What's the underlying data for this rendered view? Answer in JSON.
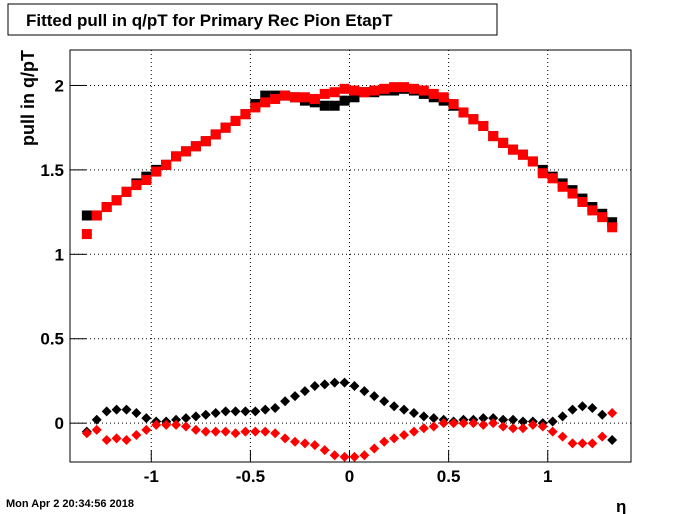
{
  "chart_data": {
    "type": "scatter",
    "title": "Fitted pull in q/pT for Primary Rec Pion EtapT",
    "y_label": "pull in q/pT",
    "x_label": "η",
    "timestamp": "Mon Apr  2 20:34:56 2018",
    "x": [
      -1.325,
      -1.275,
      -1.225,
      -1.175,
      -1.125,
      -1.075,
      -1.025,
      -0.975,
      -0.925,
      -0.875,
      -0.825,
      -0.775,
      -0.725,
      -0.675,
      -0.625,
      -0.575,
      -0.525,
      -0.475,
      -0.425,
      -0.375,
      -0.325,
      -0.275,
      -0.225,
      -0.175,
      -0.125,
      -0.075,
      -0.025,
      0.025,
      0.075,
      0.125,
      0.175,
      0.225,
      0.275,
      0.325,
      0.375,
      0.425,
      0.475,
      0.525,
      0.575,
      0.625,
      0.675,
      0.725,
      0.775,
      0.825,
      0.875,
      0.925,
      0.975,
      1.025,
      1.075,
      1.125,
      1.175,
      1.225,
      1.275,
      1.325
    ],
    "series": [
      {
        "color": "#000000",
        "marker": "square",
        "values": [
          1.23,
          1.23,
          1.28,
          1.32,
          1.37,
          1.42,
          1.46,
          1.5,
          1.53,
          1.58,
          1.61,
          1.64,
          1.67,
          1.71,
          1.75,
          1.79,
          1.83,
          1.89,
          1.94,
          1.94,
          1.94,
          1.93,
          1.91,
          1.9,
          1.88,
          1.88,
          1.91,
          1.93,
          1.96,
          1.96,
          1.97,
          1.97,
          1.98,
          1.97,
          1.95,
          1.93,
          1.91,
          1.88,
          1.84,
          1.8,
          1.76,
          1.7,
          1.66,
          1.62,
          1.59,
          1.55,
          1.5,
          1.46,
          1.42,
          1.38,
          1.33,
          1.28,
          1.24,
          1.19
        ]
      },
      {
        "color": "#ff0000",
        "marker": "square",
        "values": [
          1.12,
          1.23,
          1.28,
          1.32,
          1.37,
          1.41,
          1.44,
          1.49,
          1.53,
          1.58,
          1.61,
          1.64,
          1.67,
          1.71,
          1.75,
          1.79,
          1.83,
          1.87,
          1.9,
          1.92,
          1.94,
          1.93,
          1.93,
          1.92,
          1.95,
          1.96,
          1.98,
          1.97,
          1.96,
          1.97,
          1.98,
          1.99,
          1.99,
          1.98,
          1.97,
          1.95,
          1.93,
          1.89,
          1.84,
          1.8,
          1.76,
          1.7,
          1.66,
          1.62,
          1.59,
          1.55,
          1.48,
          1.45,
          1.4,
          1.36,
          1.31,
          1.26,
          1.22,
          1.16
        ]
      },
      {
        "color": "#000000",
        "marker": "diamond",
        "values": [
          -0.05,
          0.02,
          0.07,
          0.08,
          0.08,
          0.06,
          0.03,
          0.01,
          0.01,
          0.02,
          0.03,
          0.04,
          0.05,
          0.06,
          0.07,
          0.07,
          0.07,
          0.07,
          0.08,
          0.09,
          0.13,
          0.16,
          0.19,
          0.22,
          0.23,
          0.24,
          0.24,
          0.22,
          0.19,
          0.16,
          0.13,
          0.1,
          0.08,
          0.06,
          0.04,
          0.03,
          0.02,
          0.01,
          0.02,
          0.02,
          0.03,
          0.03,
          0.02,
          0.02,
          0.01,
          0.01,
          0.0,
          0.01,
          0.04,
          0.08,
          0.1,
          0.09,
          0.05,
          -0.1
        ]
      },
      {
        "color": "#ff0000",
        "marker": "diamond",
        "values": [
          -0.06,
          -0.04,
          -0.1,
          -0.09,
          -0.1,
          -0.07,
          -0.04,
          -0.01,
          -0.01,
          -0.01,
          -0.02,
          -0.04,
          -0.05,
          -0.05,
          -0.05,
          -0.06,
          -0.05,
          -0.05,
          -0.05,
          -0.06,
          -0.09,
          -0.11,
          -0.12,
          -0.13,
          -0.16,
          -0.19,
          -0.2,
          -0.2,
          -0.19,
          -0.15,
          -0.11,
          -0.09,
          -0.07,
          -0.05,
          -0.03,
          -0.02,
          0.0,
          0.0,
          0.0,
          0.0,
          -0.01,
          0.0,
          -0.02,
          -0.03,
          -0.03,
          -0.01,
          -0.02,
          -0.05,
          -0.08,
          -0.12,
          -0.12,
          -0.12,
          -0.08,
          0.06
        ]
      }
    ],
    "xlim": [
      -1.41,
      1.42
    ],
    "xticks": [
      -1,
      -0.5,
      0,
      0.5,
      1
    ],
    "ylim": [
      -0.23,
      2.21
    ],
    "yticks": [
      0,
      0.5,
      1,
      1.5,
      2
    ],
    "grid": true
  }
}
